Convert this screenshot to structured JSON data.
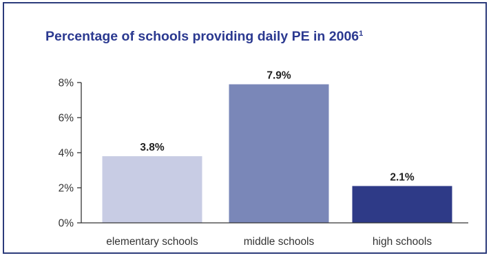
{
  "chart_data": {
    "type": "bar",
    "title": "Percentage of schools providing daily PE in 2006",
    "title_footnote": "1",
    "categories": [
      "elementary schools",
      "middle schools",
      "high schools"
    ],
    "values": [
      3.8,
      7.9,
      2.1
    ],
    "value_labels": [
      "3.8%",
      "7.9%",
      "2.1%"
    ],
    "bar_colors": [
      "#c8cce4",
      "#7a87b8",
      "#2e3a87"
    ],
    "y_ticks": [
      "0%",
      "2%",
      "4%",
      "6%",
      "8%"
    ],
    "y_tick_values": [
      0,
      2,
      4,
      6,
      8
    ],
    "ylim": [
      0,
      8
    ],
    "xlabel": "",
    "ylabel": "",
    "grid": false,
    "colors": {
      "title": "#2b3990",
      "axis": "#333333",
      "frame": "#2b3a7a",
      "text": "#333333",
      "value_label": "#222222"
    }
  }
}
